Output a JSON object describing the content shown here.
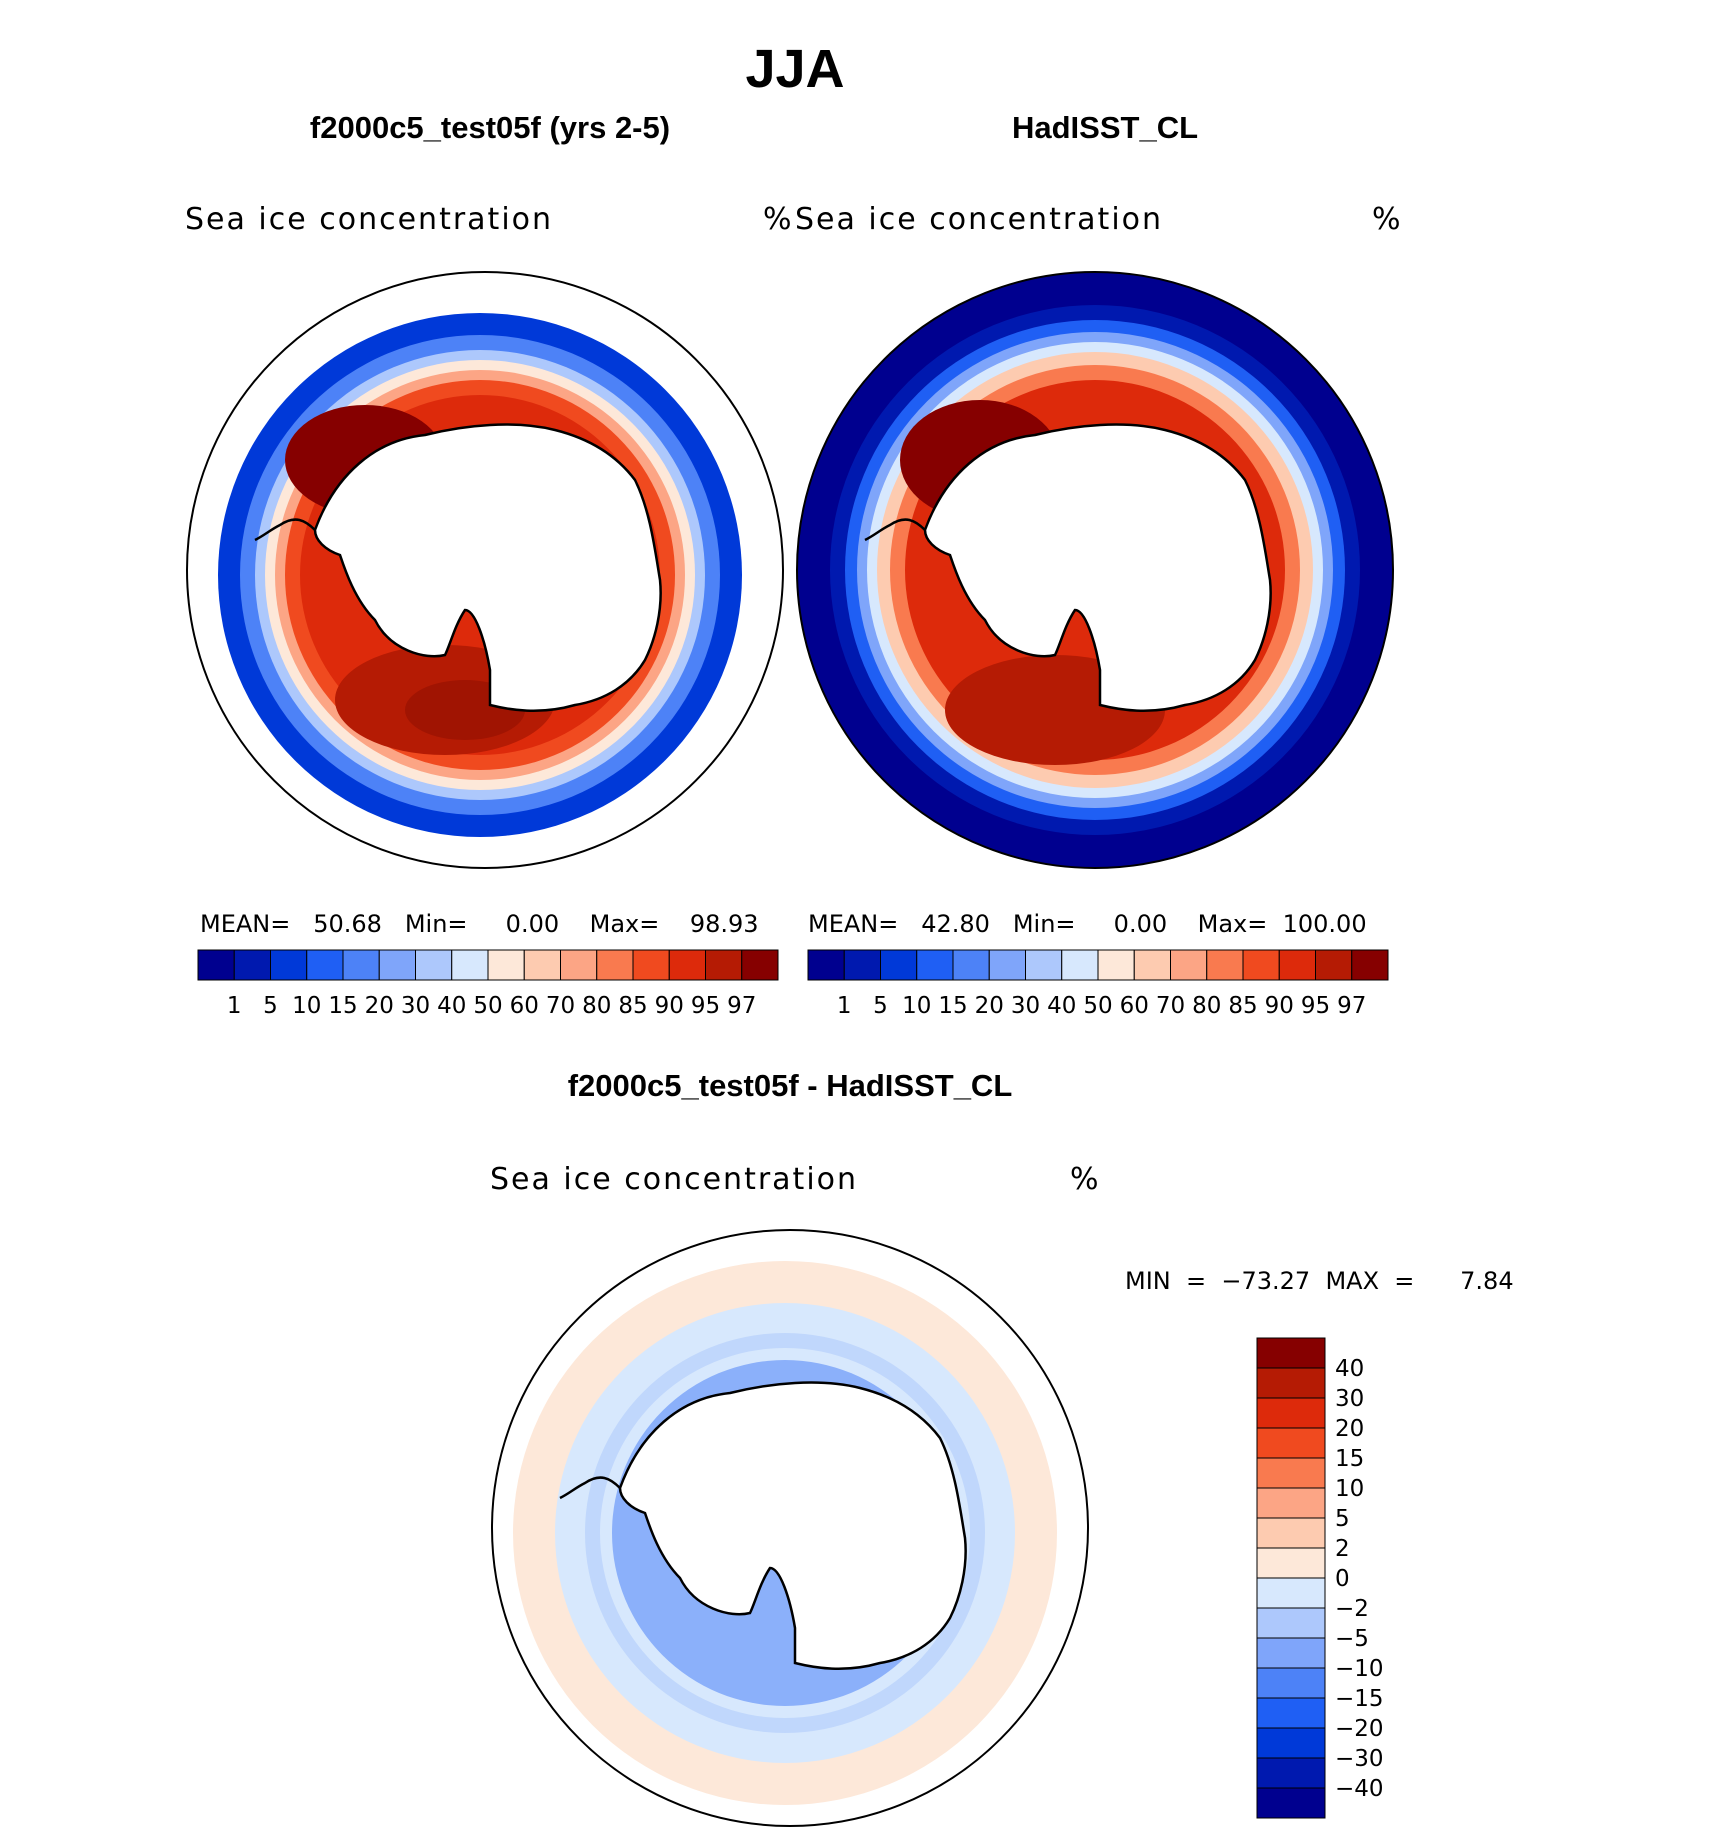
{
  "figure": {
    "title": "JJA"
  },
  "panels": [
    {
      "title": "f2000c5_test05f (yrs 2-5)",
      "variable": "Sea ice concentration",
      "units": "%",
      "stats": "MEAN=   50.68   Min=     0.00    Max=    98.93"
    },
    {
      "title": "HadISST_CL",
      "variable": "Sea ice concentration",
      "units": "%",
      "stats": "MEAN=   42.80   Min=     0.00    Max=  100.00"
    },
    {
      "title": "f2000c5_test05f - HadISST_CL",
      "variable": "Sea ice concentration",
      "units": "%",
      "stats": "MIN  =  −73.27  MAX  =      7.84"
    }
  ],
  "colorbar_main": {
    "labels": [
      "1",
      "5",
      "10",
      "15",
      "20",
      "30",
      "40",
      "50",
      "60",
      "70",
      "80",
      "85",
      "90",
      "95",
      "97"
    ],
    "colors": [
      "#00008f",
      "#0019af",
      "#0039d8",
      "#1f5ff4",
      "#4d82f7",
      "#7fa5fa",
      "#adc8fc",
      "#d7e8fd",
      "#fde8d9",
      "#fdcbb0",
      "#fca585",
      "#f97a4f",
      "#f04a1f",
      "#dd2a0b",
      "#b51b04",
      "#860000"
    ]
  },
  "colorbar_diff": {
    "labels": [
      "40",
      "30",
      "20",
      "15",
      "10",
      "5",
      "2",
      "0",
      "−2",
      "−5",
      "−10",
      "−15",
      "−20",
      "−30",
      "−40"
    ],
    "colors": [
      "#860000",
      "#b51b04",
      "#dd2a0b",
      "#f04a1f",
      "#f97a4f",
      "#fca585",
      "#fdcbb0",
      "#fde8d9",
      "#d7e8fd",
      "#adc8fc",
      "#7fa5fa",
      "#4d82f7",
      "#1f5ff4",
      "#0039d8",
      "#0019af",
      "#00008f"
    ]
  }
}
